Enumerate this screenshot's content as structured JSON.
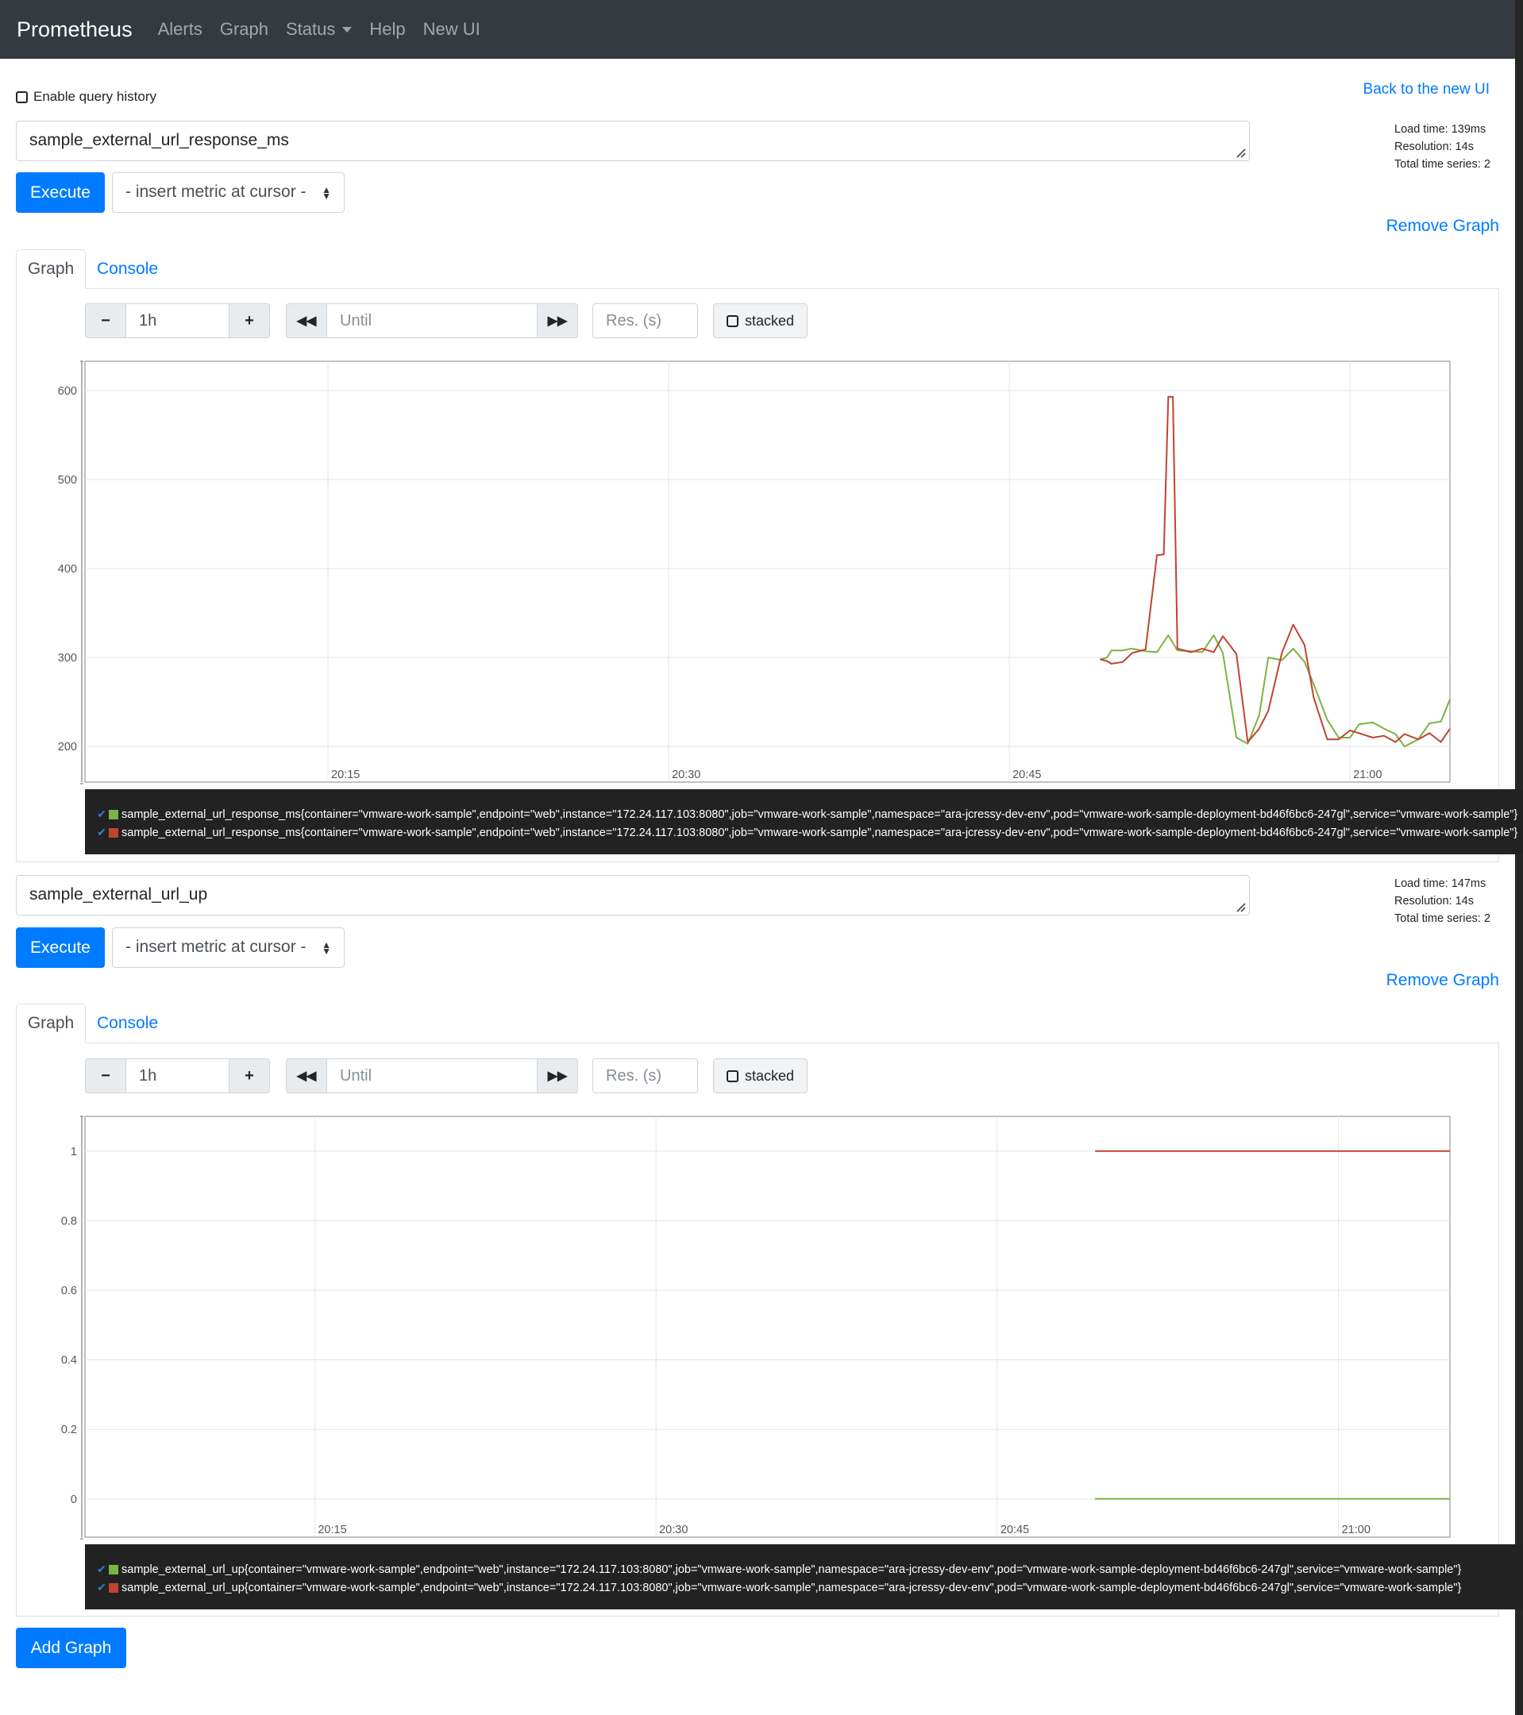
{
  "navbar": {
    "brand": "Prometheus",
    "items": [
      "Alerts",
      "Graph",
      "Status",
      "Help",
      "New UI"
    ]
  },
  "query_history_label": "Enable query history",
  "back_link": "Back to the new UI",
  "add_graph": "Add Graph",
  "panels": [
    {
      "expr": "sample_external_url_response_ms",
      "stats": [
        "Load time: 139ms",
        "Resolution: 14s",
        "Total time series: 2"
      ],
      "execute": "Execute",
      "insert_metric": "- insert metric at cursor -",
      "remove_graph": "Remove Graph",
      "tabs": [
        "Graph",
        "Console"
      ],
      "range": "1h",
      "until_placeholder": "Until",
      "res_placeholder": "Res. (s)",
      "stacked_label": "stacked",
      "legend": [
        {
          "color": "#7cb342",
          "label": "sample_external_url_response_ms{container=\"vmware-work-sample\",endpoint=\"web\",instance=\"172.24.117.103:8080\",job=\"vmware-work-sample\",namespace=\"ara-jcressy-dev-env\",pod=\"vmware-work-sample-deployment-bd46f6bc6-247gl\",service=\"vmware-work-sample\"}"
        },
        {
          "color": "#c0442f",
          "label": "sample_external_url_response_ms{container=\"vmware-work-sample\",endpoint=\"web\",instance=\"172.24.117.103:8080\",job=\"vmware-work-sample\",namespace=\"ara-jcressy-dev-env\",pod=\"vmware-work-sample-deployment-bd46f6bc6-247gl\",service=\"vmware-work-sample\"}"
        }
      ]
    },
    {
      "expr": "sample_external_url_up",
      "stats": [
        "Load time: 147ms",
        "Resolution: 14s",
        "Total time series: 2"
      ],
      "execute": "Execute",
      "insert_metric": "- insert metric at cursor -",
      "remove_graph": "Remove Graph",
      "tabs": [
        "Graph",
        "Console"
      ],
      "range": "1h",
      "until_placeholder": "Until",
      "res_placeholder": "Res. (s)",
      "stacked_label": "stacked",
      "legend": [
        {
          "color": "#7cb342",
          "label": "sample_external_url_up{container=\"vmware-work-sample\",endpoint=\"web\",instance=\"172.24.117.103:8080\",job=\"vmware-work-sample\",namespace=\"ara-jcressy-dev-env\",pod=\"vmware-work-sample-deployment-bd46f6bc6-247gl\",service=\"vmware-work-sample\"}"
        },
        {
          "color": "#c0442f",
          "label": "sample_external_url_up{container=\"vmware-work-sample\",endpoint=\"web\",instance=\"172.24.117.103:8080\",job=\"vmware-work-sample\",namespace=\"ara-jcressy-dev-env\",pod=\"vmware-work-sample-deployment-bd46f6bc6-247gl\",service=\"vmware-work-sample\"}"
        }
      ]
    }
  ],
  "chart_data": [
    {
      "type": "line",
      "x_ticks": [
        "20:15",
        "20:30",
        "20:45",
        "21:00"
      ],
      "x_tick_minutes": [
        15,
        30,
        45,
        60
      ],
      "xlim_minutes": [
        4.3,
        64.4
      ],
      "ylim": [
        160,
        633
      ],
      "y_ticks": [
        200,
        300,
        400,
        500,
        600
      ],
      "grid": true,
      "series": [
        {
          "color": "#7cb342",
          "x": [
            49,
            49.3,
            49.5,
            50,
            50.4,
            51,
            51.5,
            52,
            52.4,
            53,
            53.5,
            54,
            54.4,
            55,
            55.5,
            56,
            56.4,
            57,
            57.5,
            58,
            58.4,
            59,
            59.5,
            60,
            60.4,
            61,
            61.5,
            62,
            62.4,
            63,
            63.5,
            64,
            64.4
          ],
          "y": [
            298,
            300,
            308,
            308,
            310,
            307,
            306,
            325,
            308,
            307,
            306,
            325,
            305,
            210,
            203,
            235,
            300,
            297,
            310,
            295,
            270,
            230,
            210,
            210,
            225,
            227,
            220,
            214,
            200,
            208,
            226,
            228,
            253
          ]
        },
        {
          "color": "#c0442f",
          "x": [
            49,
            49.3,
            49.5,
            50,
            50.4,
            51,
            51.5,
            51.8,
            52,
            52.2,
            52.4,
            53,
            53.5,
            54,
            54.4,
            55,
            55.5,
            56,
            56.4,
            57,
            57.5,
            58,
            58.4,
            59,
            59.5,
            60,
            60.4,
            61,
            61.5,
            62,
            62.4,
            63,
            63.5,
            64,
            64.4
          ],
          "y": [
            298,
            296,
            293,
            295,
            305,
            309,
            415,
            416,
            593,
            593,
            310,
            306,
            310,
            306,
            324,
            304,
            205,
            220,
            240,
            305,
            337,
            314,
            255,
            208,
            208,
            218,
            215,
            210,
            212,
            205,
            214,
            208,
            215,
            205,
            220
          ]
        }
      ]
    },
    {
      "type": "line",
      "x_ticks": [
        "20:15",
        "20:30",
        "20:45",
        "21:00"
      ],
      "x_tick_minutes": [
        15,
        30,
        45,
        60
      ],
      "xlim_minutes": [
        4.9,
        64.9
      ],
      "ylim": [
        -0.11,
        1.1
      ],
      "y_ticks": [
        0,
        0.2,
        0.4,
        0.6,
        0.8,
        1
      ],
      "grid": true,
      "series": [
        {
          "color": "#c0442f",
          "x": [
            49.3,
            64.9
          ],
          "y": [
            1,
            1
          ]
        },
        {
          "color": "#7cb342",
          "x": [
            49.3,
            64.9
          ],
          "y": [
            0,
            0
          ]
        }
      ]
    }
  ]
}
